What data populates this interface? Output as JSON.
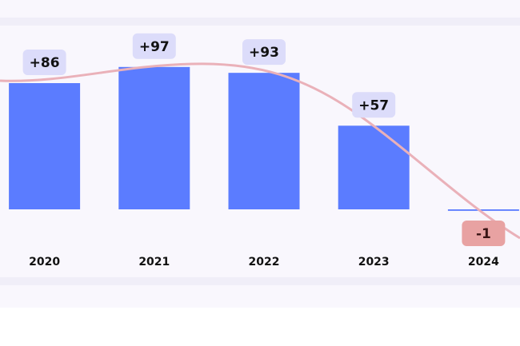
{
  "chart_data": {
    "type": "bar",
    "categories": [
      "2020",
      "2021",
      "2022",
      "2023",
      "2024"
    ],
    "values": [
      86,
      97,
      93,
      57,
      -1
    ],
    "value_labels": [
      "+86",
      "+97",
      "+93",
      "+57",
      "-1"
    ],
    "color": "#5b7cff",
    "ylim": [
      -20,
      110
    ]
  }
}
